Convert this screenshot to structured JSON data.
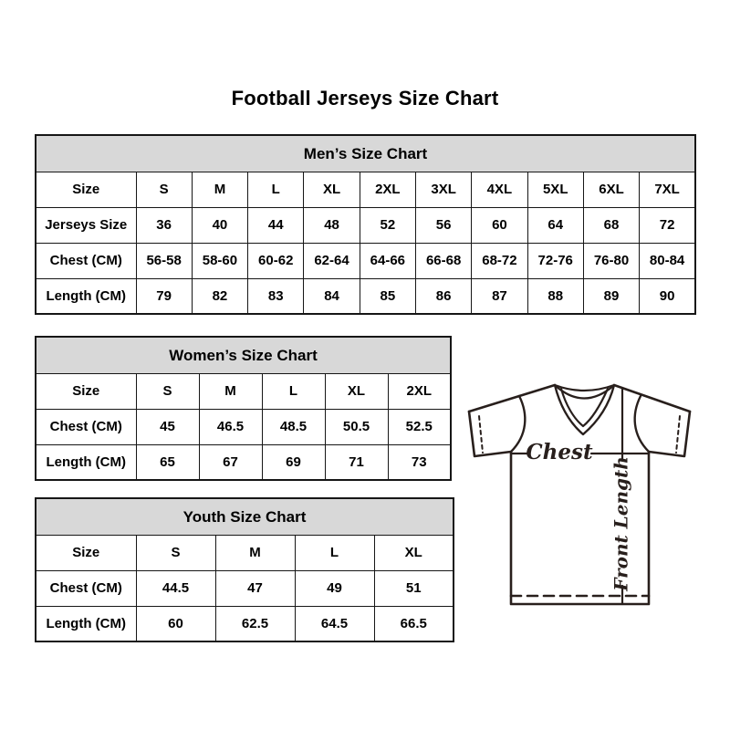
{
  "page": {
    "title": "Football Jerseys Size Chart",
    "background": "#ffffff"
  },
  "colors": {
    "table_header_bg": "#d8d8d8",
    "table_border": "#161616",
    "text": "#000000",
    "diagram_stroke": "#281f1c"
  },
  "tables": {
    "men": {
      "title": "Men’s Size Chart",
      "rows": [
        [
          "Size",
          "S",
          "M",
          "L",
          "XL",
          "2XL",
          "3XL",
          "4XL",
          "5XL",
          "6XL",
          "7XL"
        ],
        [
          "Jerseys Size",
          "36",
          "40",
          "44",
          "48",
          "52",
          "56",
          "60",
          "64",
          "68",
          "72"
        ],
        [
          "Chest (CM)",
          "56-58",
          "58-60",
          "60-62",
          "62-64",
          "64-66",
          "66-68",
          "68-72",
          "72-76",
          "76-80",
          "80-84"
        ],
        [
          "Length (CM)",
          "79",
          "82",
          "83",
          "84",
          "85",
          "86",
          "87",
          "88",
          "89",
          "90"
        ]
      ]
    },
    "women": {
      "title": "Women’s Size Chart",
      "rows": [
        [
          "Size",
          "S",
          "M",
          "L",
          "XL",
          "2XL"
        ],
        [
          "Chest (CM)",
          "45",
          "46.5",
          "48.5",
          "50.5",
          "52.5"
        ],
        [
          "Length (CM)",
          "65",
          "67",
          "69",
          "71",
          "73"
        ]
      ]
    },
    "youth": {
      "title": "Youth Size Chart",
      "rows": [
        [
          "Size",
          "S",
          "M",
          "L",
          "XL"
        ],
        [
          "Chest (CM)",
          "44.5",
          "47",
          "49",
          "51"
        ],
        [
          "Length (CM)",
          "60",
          "62.5",
          "64.5",
          "66.5"
        ]
      ]
    }
  },
  "diagram": {
    "chest_label": "Chest",
    "front_length_label": "Front Length"
  }
}
